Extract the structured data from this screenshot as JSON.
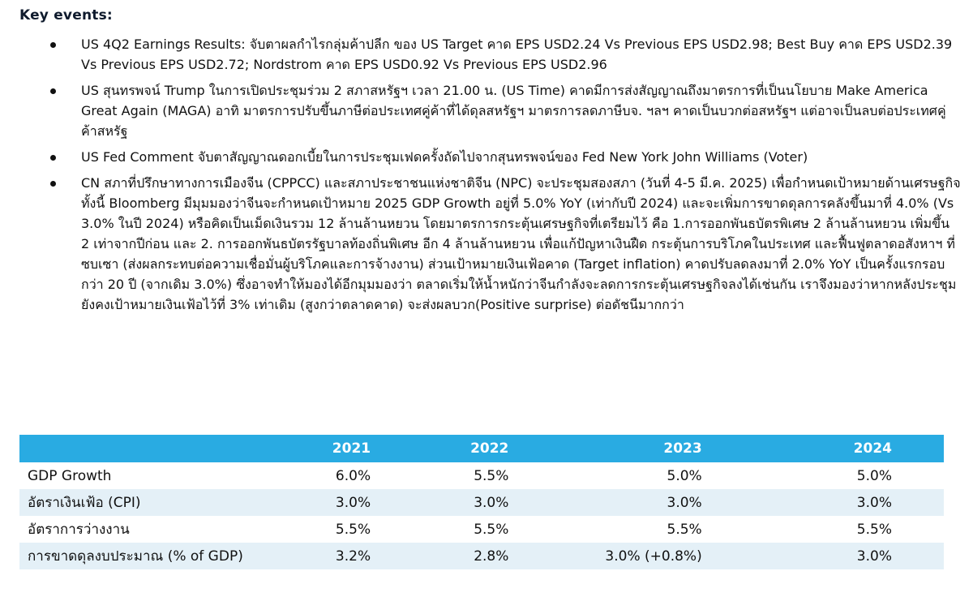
{
  "heading": "Key events:",
  "events": [
    "US 4Q2 Earnings Results: จับตาผลกำไรกลุ่มค้าปลีก ของ US Target คาด EPS USD2.24 Vs Previous EPS USD2.98; Best Buy คาด EPS USD2.39 Vs Previous EPS USD2.72; Nordstrom คาด EPS USD0.92 Vs Previous EPS USD2.96",
    "US สุนทรพจน์ Trump ในการเปิดประชุมร่วม 2 สภาสหรัฐฯ เวลา 21.00 น. (US Time) คาดมีการส่งสัญญาณถึงมาตรการที่เป็นนโยบาย Make America Great Again (MAGA)  อาทิ มาตรการปรับขึ้นภาษีต่อประเทศคู่ค้าที่ได้ดุลสหรัฐฯ มาตรการลดภาษีบจ. ฯลฯ คาดเป็นบวกต่อสหรัฐฯ แต่อาจเป็นลบต่อประเทศคู่ค้าสหรัฐ",
    "US Fed Comment จับตาสัญญาณดอกเบี้ยในการประชุมเฟดครั้งถัดไปจากสุนทรพจน์ของ Fed New York John Williams (Voter)",
    "CN สภาที่ปรึกษาทางการเมืองจีน (CPPCC) และสภาประชาชนแห่งชาติจีน (NPC) จะประชุมสองสภา (วันที่ 4-5 มี.ค. 2025) เพื่อกำหนดเป้าหมายด้านเศรษฐกิจ ทั้งนี้ Bloomberg มีมุมมองว่าจีนจะกำหนดเป้าหมาย 2025 GDP Growth อยู่ที่ 5.0% YoY (เท่ากับปี 2024) และจะเพิ่มการขาดดุลการคลังขึ้นมาที่ 4.0% (Vs 3.0% ในปี 2024) หรือคิดเป็นเม็ดเงินรวม 12 ล้านล้านหยวน โดยมาตรการกระตุ้นเศรษฐกิจที่เตรียมไว้ คือ 1.การออกพันธบัตรพิเศษ 2 ล้านล้านหยวน เพิ่มขึ้น 2 เท่าจากปีก่อน และ 2. การออกพันธบัตรรัฐบาลท้องถิ่นพิเศษ อีก 4 ล้านล้านหยวน เพื่อแก้ปัญหาเงินฝืด กระตุ้นการบริโภคในประเทศ และฟื้นฟูตลาดอสังหาฯ ที่ซบเซา (ส่งผลกระทบต่อความเชื่อมั่นผู้บริโภคและการจ้างงาน) ส่วนเป้าหมายเงินเฟ้อคาด (Target inflation) คาดปรับลดลงมาที่ 2.0% YoY เป็นครั้งแรกรอบกว่า 20 ปี (จากเดิม 3.0%) ซึ่งอาจทำให้มองได้อีกมุมมองว่า ตลาดเริ่มให้น้ำหนักว่าจีนกำลังจะลดการกระตุ้นเศรษฐกิจลงได้เช่นกัน เราจึงมองว่าหากหลังประชุมยังคงเป้าหมายเงินเฟ้อไว้ที่ 3% เท่าเดิม (สูงกว่าตลาดคาด) จะส่งผลบวก(Positive surprise) ต่อดัชนีมากกว่า"
  ],
  "table": {
    "header": [
      "",
      "2021",
      "2022",
      "2023",
      "2024"
    ],
    "rows": [
      [
        "GDP Growth",
        "6.0%",
        "5.5%",
        "5.0%",
        "5.0%"
      ],
      [
        "อัตราเงินเฟ้อ (CPI)",
        "3.0%",
        "3.0%",
        "3.0%",
        "3.0%"
      ],
      [
        "อัตราการว่างงาน",
        "5.5%",
        "5.5%",
        "5.5%",
        "5.5%"
      ],
      [
        "การขาดดุลงบประมาณ (% of GDP)",
        "3.2%",
        "2.8%",
        "3.0% (+0.8%)",
        "3.0%"
      ]
    ]
  },
  "colors": {
    "table_header_bg": "#29abe2",
    "table_stripe_bg": "#e4f0f7",
    "heading_text": "#0f1b2d"
  }
}
